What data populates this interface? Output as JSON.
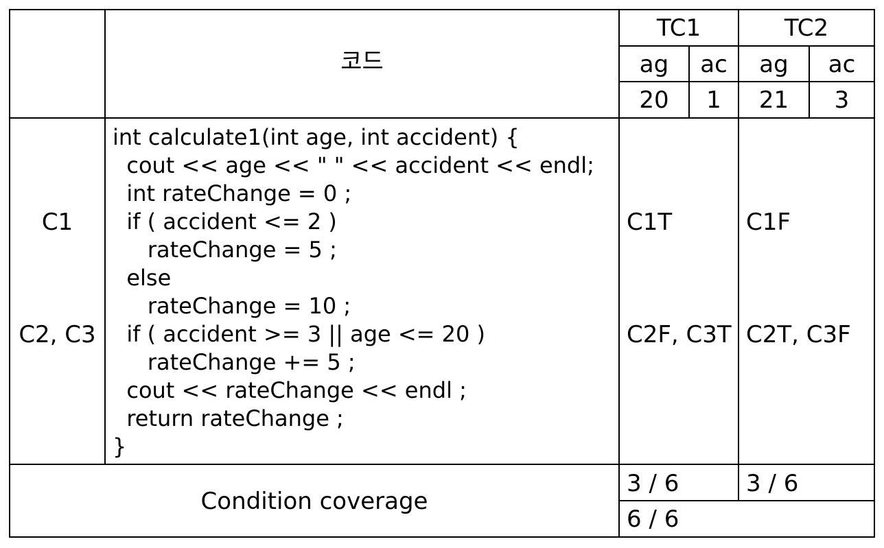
{
  "header": {
    "code_title": "코드",
    "tc1": {
      "label": "TC1",
      "cols": [
        "ag",
        "ac"
      ],
      "vals": [
        "20",
        "1"
      ]
    },
    "tc2": {
      "label": "TC2",
      "cols": [
        "ag",
        "ac"
      ],
      "vals": [
        "21",
        "3"
      ]
    }
  },
  "row_labels": {
    "c1": "C1",
    "c23": "C2, C3"
  },
  "code_lines": [
    "int calculate1(int age, int accident) {",
    "  cout << age << \" \" << accident << endl;",
    "  int rateChange = 0 ;",
    "  if ( accident <= 2 )",
    "     rateChange = 5 ;",
    "  else",
    "     rateChange = 10 ;",
    "  if ( accident >= 3 || age <= 20 )",
    "     rateChange += 5 ;",
    "  cout << rateChange << endl ;",
    "  return rateChange ;",
    "}"
  ],
  "tc1_results": {
    "c1": "C1T",
    "c23": "C2F, C3T"
  },
  "tc2_results": {
    "c1": "C1F",
    "c23": "C2T, C3F"
  },
  "footer": {
    "label": "Condition coverage",
    "tc1": "3 / 6",
    "tc2": "3 / 6",
    "total": "6 / 6"
  }
}
